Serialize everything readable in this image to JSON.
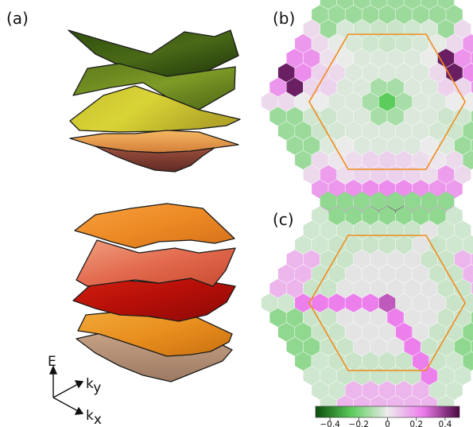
{
  "panels": {
    "a": {
      "label": "(a)"
    },
    "b": {
      "label": "(b)"
    },
    "c": {
      "label": "(c)"
    }
  },
  "axes": {
    "e_label": "E",
    "ky_label": "k",
    "ky_sub": "y",
    "kx_label": "k",
    "kx_sub": "x"
  },
  "colorbar": {
    "ticks": [
      "−0.4",
      "−0.2",
      "0",
      "0.2",
      "0.4"
    ],
    "range": [
      -0.5,
      0.5
    ],
    "colors": [
      "#0b4d0b",
      "#9fe89f",
      "#ececec",
      "#ee88ee",
      "#5a0a4a"
    ]
  },
  "colors": {
    "boundary_hexagon": "#f08a1a",
    "neutral_cell": "#e4e4e4"
  }
}
